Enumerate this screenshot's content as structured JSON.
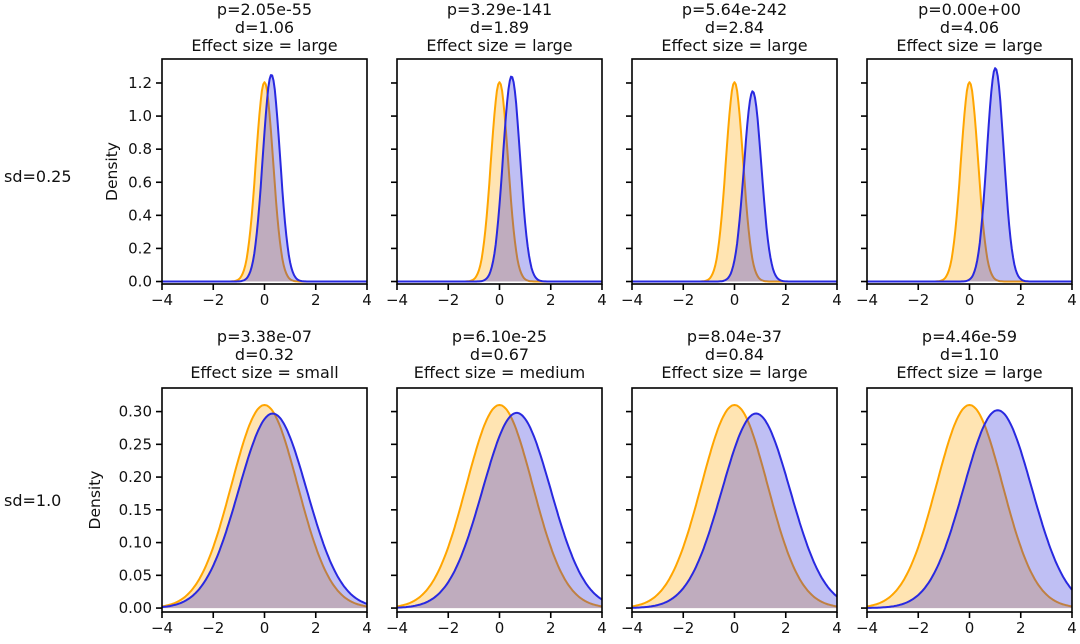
{
  "chart_data": {
    "type": "area",
    "description": "2x4 grid of overlapping Gaussian KDE density plots comparing two distributions (orange vs blue) for different effect sizes",
    "xlabel": "",
    "ylabel": "Density",
    "xlim": [
      -4,
      4
    ],
    "xtick_vals": [
      -4,
      -2,
      0,
      2,
      4
    ],
    "xtick_labels": [
      "−4",
      "−2",
      "0",
      "2",
      "4"
    ],
    "grid": false,
    "legend": null,
    "colors": {
      "orange_line": "#ffa500",
      "blue_line": "#2929e0",
      "orange_fill": "#ffa500",
      "blue_fill": "#2a2ad9",
      "fill_opacity": 0.3,
      "axis": "#000000",
      "text": "#111111",
      "background": "#ffffff"
    },
    "rows": [
      {
        "label": "sd=0.25",
        "sd": 0.25,
        "ylabel": "Density",
        "ylim": [
          -0.015,
          1.345
        ],
        "ytick_vals": [
          0.0,
          0.2,
          0.4,
          0.6,
          0.8,
          1.0,
          1.2
        ],
        "ytick_labels": [
          "0.0",
          "0.2",
          "0.4",
          "0.6",
          "0.8",
          "1.0",
          "1.2"
        ],
        "panels": [
          {
            "p": "p=2.05e-55",
            "d": "d=1.06",
            "effect": "Effect size = large",
            "curves": {
              "orange": {
                "mean": 0,
                "sigma": 0.335,
                "peak": 1.205
              },
              "blue": {
                "mean": 0.27,
                "sigma": 0.335,
                "peak": 1.25
              }
            }
          },
          {
            "p": "p=3.29e-141",
            "d": "d=1.89",
            "effect": "Effect size = large",
            "curves": {
              "orange": {
                "mean": 0,
                "sigma": 0.335,
                "peak": 1.205
              },
              "blue": {
                "mean": 0.47,
                "sigma": 0.335,
                "peak": 1.24
              }
            }
          },
          {
            "p": "p=5.64e-242",
            "d": "d=2.84",
            "effect": "Effect size = large",
            "curves": {
              "orange": {
                "mean": 0,
                "sigma": 0.335,
                "peak": 1.205
              },
              "blue": {
                "mean": 0.71,
                "sigma": 0.34,
                "peak": 1.15
              }
            }
          },
          {
            "p": "p=0.00e+00",
            "d": "d=4.06",
            "effect": "Effect size = large",
            "curves": {
              "orange": {
                "mean": 0,
                "sigma": 0.335,
                "peak": 1.205
              },
              "blue": {
                "mean": 1.01,
                "sigma": 0.33,
                "peak": 1.29
              }
            }
          }
        ]
      },
      {
        "label": "sd=1.0",
        "sd": 1.0,
        "ylabel": "Density",
        "ylim": [
          -0.006,
          0.336
        ],
        "ytick_vals": [
          0.0,
          0.05,
          0.1,
          0.15,
          0.2,
          0.25,
          0.3
        ],
        "ytick_labels": [
          "0.00",
          "0.05",
          "0.10",
          "0.15",
          "0.20",
          "0.25",
          "0.30"
        ],
        "panels": [
          {
            "p": "p=3.38e-07",
            "d": "d=0.32",
            "effect": "Effect size = small",
            "curves": {
              "orange": {
                "mean": 0,
                "sigma": 1.29,
                "peak": 0.31
              },
              "blue": {
                "mean": 0.32,
                "sigma": 1.33,
                "peak": 0.297
              }
            }
          },
          {
            "p": "p=6.10e-25",
            "d": "d=0.67",
            "effect": "Effect size = medium",
            "curves": {
              "orange": {
                "mean": 0,
                "sigma": 1.29,
                "peak": 0.31
              },
              "blue": {
                "mean": 0.67,
                "sigma": 1.33,
                "peak": 0.298
              }
            }
          },
          {
            "p": "p=8.04e-37",
            "d": "d=0.84",
            "effect": "Effect size = large",
            "curves": {
              "orange": {
                "mean": 0,
                "sigma": 1.29,
                "peak": 0.31
              },
              "blue": {
                "mean": 0.84,
                "sigma": 1.33,
                "peak": 0.297
              }
            }
          },
          {
            "p": "p=4.46e-59",
            "d": "d=1.10",
            "effect": "Effect size = large",
            "curves": {
              "orange": {
                "mean": 0,
                "sigma": 1.29,
                "peak": 0.31
              },
              "blue": {
                "mean": 1.1,
                "sigma": 1.33,
                "peak": 0.302
              }
            }
          }
        ]
      }
    ]
  }
}
